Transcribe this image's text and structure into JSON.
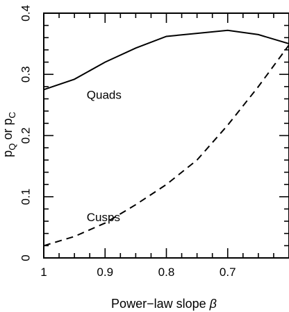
{
  "chart_data": {
    "type": "line",
    "title": "",
    "xlabel": "Power−law slope",
    "xlabel_symbol": "β",
    "ylabel_parts": {
      "p1": "p",
      "s1": "Q",
      "mid": " or ",
      "p2": "p",
      "s2": "C"
    },
    "xlim": [
      1.0,
      0.6
    ],
    "ylim": [
      0,
      0.4
    ],
    "x_ticks": [
      1.0,
      0.9,
      0.8,
      0.7
    ],
    "x_tick_labels": [
      "1",
      "0.9",
      "0.8",
      "0.7"
    ],
    "y_ticks": [
      0,
      0.1,
      0.2,
      0.3,
      0.4
    ],
    "y_tick_labels": [
      "0",
      "0.1",
      "0.2",
      "0.3",
      "0.4"
    ],
    "series": [
      {
        "style": "solid",
        "x": [
          1.0,
          0.95,
          0.9,
          0.85,
          0.8,
          0.75,
          0.7,
          0.65,
          0.6
        ],
        "y": [
          0.275,
          0.292,
          0.32,
          0.343,
          0.362,
          0.367,
          0.372,
          0.365,
          0.35
        ]
      },
      {
        "style": "dashed",
        "x": [
          1.0,
          0.95,
          0.9,
          0.85,
          0.8,
          0.75,
          0.7,
          0.65,
          0.6
        ],
        "y": [
          0.02,
          0.035,
          0.057,
          0.087,
          0.12,
          0.16,
          0.217,
          0.28,
          0.348
        ]
      }
    ],
    "annotations": [
      {
        "text": "Quads",
        "x": 0.93,
        "y": 0.26
      },
      {
        "text": "Cusps",
        "x": 0.93,
        "y": 0.06
      }
    ]
  }
}
